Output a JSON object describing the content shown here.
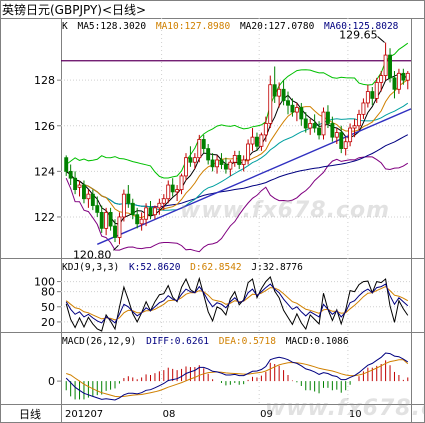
{
  "title": "英镑日元(GBPJPY)<日线>",
  "colors": {
    "bg": "#ffffff",
    "grid": "#d0d0d0",
    "axis": "#808080",
    "up": "#c00000",
    "down": "#008000",
    "ma5": "#000000",
    "ma10": "#d08000",
    "ma20": "#00a0a0",
    "ma60": "#000080",
    "boll_upper": "#00c000",
    "boll_lower": "#800080",
    "trend": "#3030c0",
    "hline": "#600060",
    "k": "#000080",
    "d": "#d08000",
    "j": "#000000",
    "macd_diff": "#000080",
    "macd_dea": "#d08000"
  },
  "main_header": {
    "k": "K",
    "ma5": "MA5:128.3020",
    "ma10": "MA10:127.8980",
    "ma20": "MA20:127.0780",
    "ma60": "MA60:125.8028"
  },
  "kdj_header": {
    "name": "KDJ(9,3,3)",
    "k": "K:52.8620",
    "d": "D:62.8542",
    "j": "J:32.8776"
  },
  "macd_header": {
    "name": "MACD(26,12,9)",
    "diff": "DIFF:0.6261",
    "dea": "DEA:0.5718",
    "macd": "MACD:0.1086"
  },
  "annotations": {
    "high": "129.65",
    "low": "120.80"
  },
  "x_axis": {
    "label": "日线",
    "ticks": [
      "201207",
      "08",
      "09",
      "10"
    ]
  },
  "watermark": "www.fx678.com",
  "chart_data": {
    "type": "candlestick",
    "title": "英镑日元(GBPJPY)<日线>",
    "y_ticks": [
      122,
      124,
      126,
      128
    ],
    "ylim": [
      120.2,
      130.2
    ],
    "kdj_ticks": [
      20,
      50,
      80,
      100
    ],
    "kdj_ylim": [
      0,
      115
    ],
    "macd_ticks": [
      0
    ],
    "macd_ylim": [
      -0.75,
      1.15
    ],
    "horizontal_line": 128.85,
    "trendline": [
      [
        7,
        120.8
      ],
      [
        78,
        126.5
      ]
    ],
    "ohlc": [
      [
        124.6,
        124.7,
        123.8,
        124.0
      ],
      [
        124.0,
        124.3,
        123.4,
        123.7
      ],
      [
        123.7,
        124.0,
        123.0,
        123.2
      ],
      [
        123.3,
        123.6,
        122.9,
        123.4
      ],
      [
        123.4,
        123.6,
        122.6,
        122.8
      ],
      [
        122.8,
        123.2,
        122.4,
        123.0
      ],
      [
        123.0,
        123.2,
        122.3,
        122.5
      ],
      [
        122.5,
        122.9,
        122.0,
        122.2
      ],
      [
        122.2,
        122.5,
        121.3,
        121.5
      ],
      [
        121.5,
        122.4,
        121.2,
        122.2
      ],
      [
        122.2,
        122.4,
        121.4,
        121.6
      ],
      [
        121.6,
        121.9,
        120.9,
        121.1
      ],
      [
        121.1,
        122.2,
        120.8,
        122.0
      ],
      [
        122.0,
        123.2,
        121.8,
        123.0
      ],
      [
        123.0,
        123.4,
        122.4,
        122.6
      ],
      [
        122.6,
        122.8,
        121.9,
        122.1
      ],
      [
        122.1,
        122.4,
        121.5,
        121.7
      ],
      [
        121.7,
        122.2,
        121.4,
        121.9
      ],
      [
        121.9,
        122.6,
        121.6,
        122.4
      ],
      [
        122.4,
        122.7,
        121.9,
        122.1
      ],
      [
        122.1,
        122.5,
        121.9,
        122.4
      ],
      [
        122.4,
        122.8,
        122.1,
        122.6
      ],
      [
        122.6,
        123.0,
        122.3,
        122.8
      ],
      [
        122.8,
        123.6,
        122.6,
        123.4
      ],
      [
        123.4,
        123.7,
        122.9,
        123.1
      ],
      [
        123.1,
        123.4,
        122.7,
        123.2
      ],
      [
        123.2,
        123.9,
        123.0,
        123.8
      ],
      [
        123.8,
        124.8,
        123.6,
        124.6
      ],
      [
        124.6,
        125.1,
        124.2,
        124.4
      ],
      [
        124.4,
        124.8,
        124.1,
        124.6
      ],
      [
        124.6,
        125.6,
        124.4,
        125.4
      ],
      [
        125.4,
        125.6,
        124.8,
        125.0
      ],
      [
        125.0,
        125.2,
        124.3,
        124.5
      ],
      [
        124.5,
        124.8,
        124.0,
        124.2
      ],
      [
        124.2,
        124.7,
        123.9,
        124.5
      ],
      [
        124.5,
        124.8,
        124.1,
        124.3
      ],
      [
        124.3,
        124.6,
        123.9,
        124.1
      ],
      [
        124.1,
        124.5,
        123.8,
        124.4
      ],
      [
        124.4,
        124.9,
        124.2,
        124.7
      ],
      [
        124.7,
        124.9,
        124.1,
        124.3
      ],
      [
        124.3,
        124.7,
        124.0,
        124.5
      ],
      [
        124.5,
        125.4,
        124.3,
        125.2
      ],
      [
        125.2,
        125.9,
        124.9,
        125.5
      ],
      [
        125.5,
        125.7,
        124.9,
        125.1
      ],
      [
        125.1,
        125.7,
        124.9,
        125.6
      ],
      [
        125.6,
        126.4,
        125.3,
        126.1
      ],
      [
        126.1,
        128.2,
        125.9,
        127.8
      ],
      [
        127.8,
        128.6,
        127.0,
        127.3
      ],
      [
        127.3,
        127.9,
        126.8,
        127.6
      ],
      [
        127.6,
        128.0,
        126.9,
        127.1
      ],
      [
        127.1,
        127.5,
        126.5,
        126.9
      ],
      [
        126.9,
        127.2,
        126.4,
        126.6
      ],
      [
        126.6,
        127.0,
        126.2,
        126.8
      ],
      [
        126.8,
        127.0,
        126.0,
        126.3
      ],
      [
        126.3,
        126.6,
        125.7,
        125.9
      ],
      [
        125.9,
        126.3,
        125.6,
        126.1
      ],
      [
        126.1,
        126.5,
        125.7,
        125.9
      ],
      [
        125.9,
        126.2,
        125.4,
        125.6
      ],
      [
        125.6,
        126.8,
        125.4,
        126.6
      ],
      [
        126.6,
        126.9,
        125.9,
        126.1
      ],
      [
        126.1,
        126.4,
        125.3,
        125.5
      ],
      [
        125.5,
        125.9,
        125.2,
        125.7
      ],
      [
        125.7,
        126.0,
        124.8,
        125.0
      ],
      [
        125.0,
        125.5,
        124.7,
        125.3
      ],
      [
        125.3,
        126.1,
        125.1,
        125.9
      ],
      [
        125.9,
        126.3,
        125.5,
        126.0
      ],
      [
        126.0,
        126.7,
        125.8,
        126.5
      ],
      [
        126.5,
        127.2,
        126.3,
        127.0
      ],
      [
        127.0,
        127.8,
        126.8,
        127.5
      ],
      [
        127.5,
        127.7,
        126.9,
        127.2
      ],
      [
        127.2,
        128.1,
        127.0,
        127.9
      ],
      [
        127.9,
        128.4,
        127.5,
        128.2
      ],
      [
        128.2,
        129.65,
        128.0,
        129.1
      ],
      [
        129.1,
        129.4,
        127.9,
        128.1
      ],
      [
        128.1,
        128.4,
        127.2,
        127.6
      ],
      [
        127.6,
        128.5,
        127.4,
        128.3
      ],
      [
        128.3,
        128.5,
        127.8,
        128.0
      ],
      [
        128.0,
        128.4,
        127.6,
        128.3
      ]
    ],
    "kdj": {
      "k": [
        60,
        45,
        35,
        40,
        30,
        35,
        28,
        22,
        18,
        30,
        25,
        18,
        35,
        55,
        50,
        40,
        32,
        38,
        48,
        42,
        50,
        58,
        62,
        72,
        65,
        62,
        75,
        85,
        80,
        78,
        90,
        78,
        62,
        50,
        58,
        55,
        48,
        60,
        68,
        58,
        62,
        78,
        85,
        72,
        80,
        88,
        95,
        85,
        78,
        65,
        55,
        45,
        50,
        40,
        32,
        40,
        35,
        30,
        55,
        45,
        35,
        42,
        30,
        40,
        58,
        62,
        72,
        80,
        85,
        78,
        88,
        90,
        95,
        72,
        55,
        68,
        60,
        52
      ],
      "d": [
        62,
        55,
        48,
        46,
        40,
        38,
        34,
        30,
        26,
        28,
        27,
        24,
        28,
        38,
        43,
        42,
        38,
        38,
        42,
        42,
        45,
        50,
        55,
        62,
        63,
        63,
        68,
        75,
        78,
        78,
        82,
        80,
        73,
        64,
        62,
        60,
        55,
        57,
        62,
        60,
        61,
        68,
        75,
        74,
        77,
        82,
        88,
        87,
        83,
        76,
        68,
        60,
        57,
        51,
        45,
        43,
        40,
        37,
        44,
        45,
        41,
        41,
        37,
        38,
        46,
        53,
        61,
        70,
        77,
        78,
        82,
        86,
        90,
        82,
        73,
        71,
        67,
        62
      ],
      "j": [
        56,
        25,
        9,
        28,
        10,
        29,
        16,
        6,
        2,
        34,
        21,
        6,
        49,
        89,
        64,
        36,
        20,
        38,
        60,
        42,
        60,
        74,
        76,
        92,
        69,
        60,
        89,
        105,
        84,
        78,
        106,
        74,
        40,
        22,
        50,
        45,
        34,
        66,
        80,
        54,
        64,
        98,
        105,
        68,
        86,
        100,
        109,
        81,
        68,
        43,
        29,
        15,
        36,
        18,
        6,
        34,
        25,
        16,
        77,
        45,
        23,
        44,
        16,
        44,
        82,
        80,
        94,
        100,
        101,
        78,
        100,
        98,
        105,
        52,
        19,
        62,
        46,
        33
      ]
    },
    "macd": {
      "diff": [
        0.1,
        -0.05,
        -0.2,
        -0.3,
        -0.4,
        -0.45,
        -0.5,
        -0.55,
        -0.6,
        -0.58,
        -0.6,
        -0.62,
        -0.55,
        -0.45,
        -0.4,
        -0.4,
        -0.42,
        -0.38,
        -0.3,
        -0.28,
        -0.22,
        -0.15,
        -0.08,
        0.02,
        0.05,
        0.08,
        0.15,
        0.25,
        0.3,
        0.35,
        0.45,
        0.45,
        0.4,
        0.32,
        0.3,
        0.26,
        0.2,
        0.2,
        0.22,
        0.18,
        0.18,
        0.25,
        0.32,
        0.33,
        0.38,
        0.48,
        0.7,
        0.75,
        0.78,
        0.75,
        0.7,
        0.62,
        0.58,
        0.5,
        0.4,
        0.36,
        0.3,
        0.22,
        0.28,
        0.25,
        0.18,
        0.15,
        0.05,
        0.05,
        0.12,
        0.18,
        0.28,
        0.4,
        0.52,
        0.58,
        0.68,
        0.78,
        0.92,
        0.9,
        0.82,
        0.8,
        0.72,
        0.63
      ],
      "dea": [
        0.25,
        0.2,
        0.1,
        0.0,
        -0.1,
        -0.18,
        -0.25,
        -0.32,
        -0.38,
        -0.42,
        -0.46,
        -0.5,
        -0.51,
        -0.5,
        -0.48,
        -0.46,
        -0.45,
        -0.44,
        -0.41,
        -0.38,
        -0.35,
        -0.31,
        -0.26,
        -0.2,
        -0.15,
        -0.1,
        -0.05,
        0.01,
        0.07,
        0.12,
        0.19,
        0.24,
        0.28,
        0.29,
        0.3,
        0.29,
        0.27,
        0.26,
        0.25,
        0.24,
        0.23,
        0.23,
        0.25,
        0.27,
        0.29,
        0.33,
        0.4,
        0.47,
        0.53,
        0.57,
        0.6,
        0.61,
        0.6,
        0.58,
        0.55,
        0.51,
        0.47,
        0.42,
        0.39,
        0.36,
        0.33,
        0.29,
        0.24,
        0.2,
        0.18,
        0.18,
        0.2,
        0.24,
        0.3,
        0.36,
        0.43,
        0.5,
        0.58,
        0.64,
        0.67,
        0.7,
        0.7,
        0.57
      ]
    }
  }
}
